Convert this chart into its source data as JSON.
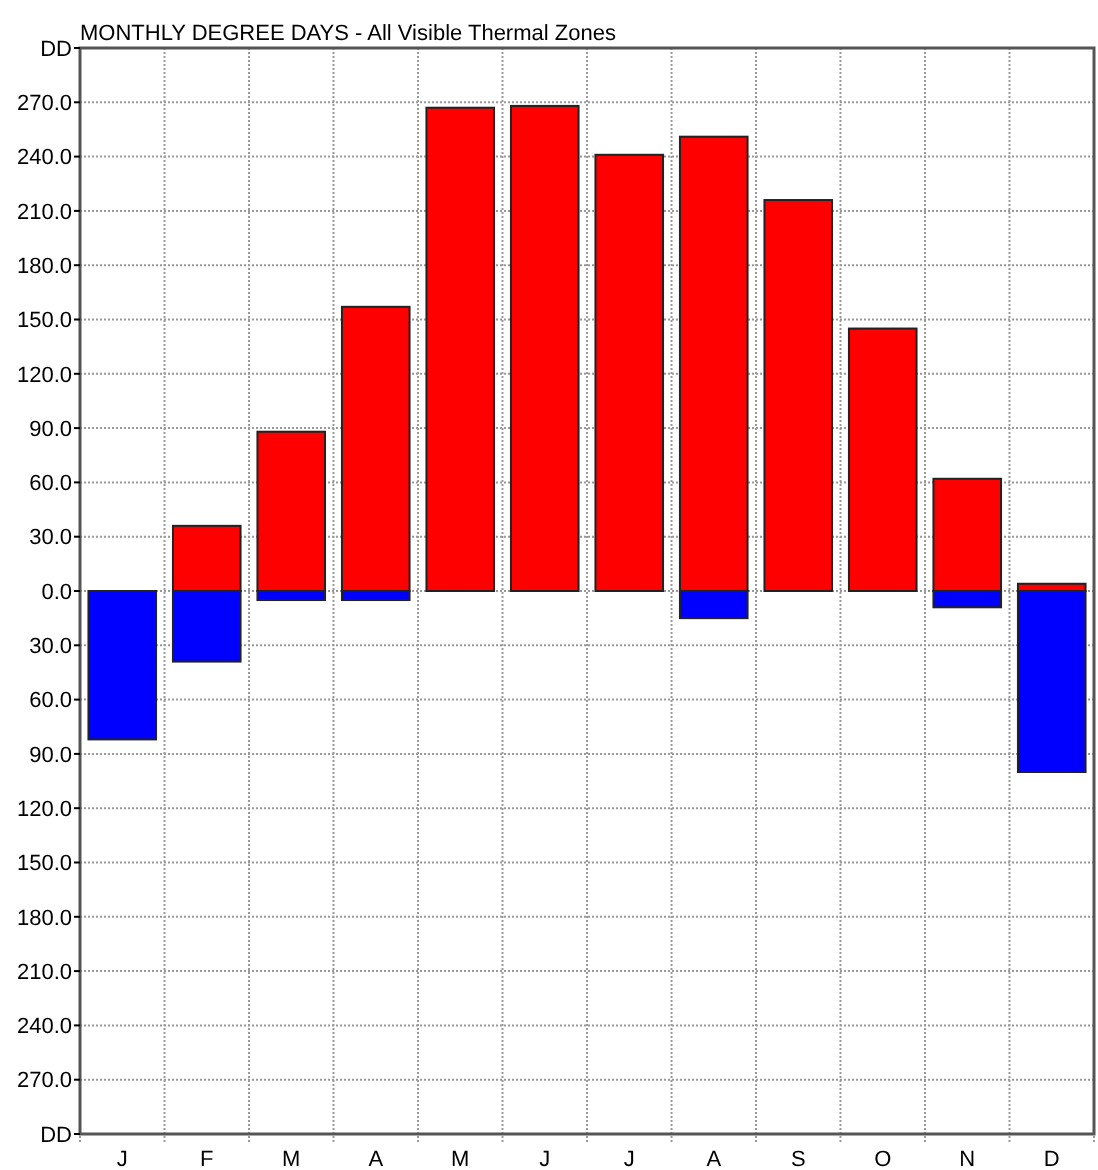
{
  "chart_data": {
    "type": "bar",
    "title": "MONTHLY DEGREE DAYS - All Visible Thermal Zones",
    "categories": [
      "J",
      "F",
      "M",
      "A",
      "M",
      "J",
      "J",
      "A",
      "S",
      "O",
      "N",
      "D"
    ],
    "stacked": true,
    "series": [
      {
        "color": "#ff0000",
        "values": [
          null,
          36,
          88,
          157,
          267,
          268,
          241,
          251,
          216,
          145,
          62,
          4
        ]
      },
      {
        "color": "#0000ff",
        "values": [
          -82,
          -39,
          -5,
          -5,
          0,
          0,
          0,
          -15,
          0,
          0,
          -9,
          -100
        ]
      }
    ],
    "ylim": [
      -300,
      300
    ],
    "yticks": [
      {
        "value": 300,
        "label": "DD"
      },
      {
        "value": 270,
        "label": "270.0"
      },
      {
        "value": 240,
        "label": "240.0"
      },
      {
        "value": 210,
        "label": "210.0"
      },
      {
        "value": 180,
        "label": "180.0"
      },
      {
        "value": 150,
        "label": "150.0"
      },
      {
        "value": 120,
        "label": "120.0"
      },
      {
        "value": 90,
        "label": "90.0"
      },
      {
        "value": 60,
        "label": "60.0"
      },
      {
        "value": 30,
        "label": "30.0"
      },
      {
        "value": 0,
        "label": "0.0"
      },
      {
        "value": -30,
        "label": "30.0"
      },
      {
        "value": -60,
        "label": "60.0"
      },
      {
        "value": -90,
        "label": "90.0"
      },
      {
        "value": -120,
        "label": "120.0"
      },
      {
        "value": -150,
        "label": "150.0"
      },
      {
        "value": -180,
        "label": "180.0"
      },
      {
        "value": -210,
        "label": "210.0"
      },
      {
        "value": -240,
        "label": "240.0"
      },
      {
        "value": -270,
        "label": "270.0"
      },
      {
        "value": -300,
        "label": "DD"
      }
    ],
    "grid": true
  }
}
